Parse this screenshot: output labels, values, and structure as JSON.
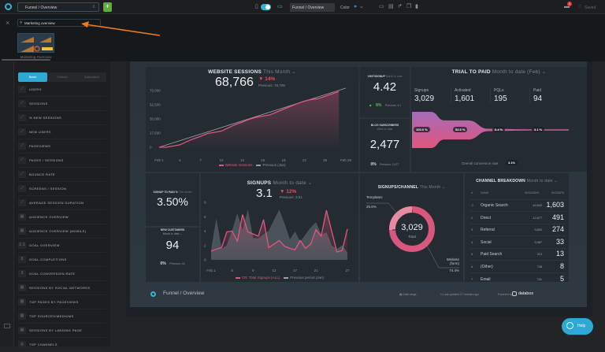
{
  "topbar": {
    "dashboard_select": "Funnel / Overview",
    "add_label": "+",
    "title_input": "Funnel / Overview",
    "color_label": "Color",
    "saved_label": "Saved",
    "notification_count": "1"
  },
  "overlay": {
    "search_value": "Marketing overview",
    "template_label": "Marketing Overview",
    "arrow_color": "#f07a1a"
  },
  "sidebar": {
    "tabs": [
      {
        "label": "Basic",
        "active": true
      },
      {
        "label": "Custom"
      },
      {
        "label": "Calculated"
      }
    ],
    "items": [
      {
        "label": "USERS",
        "icon": "line-chart-icon"
      },
      {
        "label": "SESSIONS",
        "icon": "line-chart-icon"
      },
      {
        "label": "% NEW SESSIONS",
        "icon": "line-chart-icon"
      },
      {
        "label": "NEW USERS",
        "icon": "line-chart-icon"
      },
      {
        "label": "PAGEVIEWS",
        "icon": "line-chart-icon"
      },
      {
        "label": "PAGES / SESSIONS",
        "icon": "line-chart-icon"
      },
      {
        "label": "BOUNCE RATE",
        "icon": "line-chart-icon"
      },
      {
        "label": "SCREENS / SESSION",
        "icon": "line-chart-icon"
      },
      {
        "label": "AVERAGE SESSION DURATION",
        "icon": "line-chart-icon"
      },
      {
        "label": "AUDIENCE OVERVIEW",
        "icon": "table-icon"
      },
      {
        "label": "AUDIENCE OVERVIEW (MOBILE)",
        "icon": "table-icon"
      },
      {
        "label": "GOAL OVERVIEW",
        "icon": "numbers-icon"
      },
      {
        "label": "GOAL COMPLETIONS",
        "icon": "number-icon"
      },
      {
        "label": "GOAL CONVERSION RATE",
        "icon": "number-icon"
      },
      {
        "label": "SESSIONS BY SOCIAL NETWORKS",
        "icon": "table-icon"
      },
      {
        "label": "TOP PAGES BY PAGEVIEWS",
        "icon": "table-icon"
      },
      {
        "label": "TOP SOURCES/MEDIUMS",
        "icon": "table-icon"
      },
      {
        "label": "SESSIONS BY LANDING PAGE",
        "icon": "table-icon"
      },
      {
        "label": "TOP CHANNELS",
        "icon": "donut-icon"
      }
    ]
  },
  "website_sessions": {
    "title": "WEBSITE SESSIONS",
    "period": "This Month",
    "value": "68,766",
    "change": "14%",
    "previous": "Previous: 79,709",
    "legend": [
      "Website sessions",
      "Previous (Jan)"
    ]
  },
  "visit_signup": {
    "title": "VISIT/SIGNUP",
    "period": "Month to date",
    "value": "4.42",
    "change": "8%",
    "previous": "Previous: 4.1"
  },
  "blog_subscribers": {
    "title": "BLOG SUBSCRIBERS",
    "period": "Week to date",
    "value": "2,477",
    "change": "0%",
    "previous": "Previous: 2,477"
  },
  "trial_to_paid": {
    "title": "TRIAL TO PAID",
    "period": "Month to date (Feb)",
    "stages": [
      {
        "label": "Signups",
        "value": "3,029",
        "pct": "100.0 %",
        "ratio": 100
      },
      {
        "label": "Activated",
        "value": "1,601",
        "pct": "52.9 %",
        "ratio": 52.9
      },
      {
        "label": "PQLs",
        "value": "195",
        "pct": "6.4 %",
        "ratio": 6.4
      },
      {
        "label": "Paid",
        "value": "94",
        "pct": "3.1 %",
        "ratio": 3.1
      }
    ],
    "overall_label": "Overall conversion rate",
    "overall_value": "3.1%"
  },
  "signup_to_paid": {
    "title": "SIGNUP TO PAID %",
    "period": "This Month",
    "value": "3.50%"
  },
  "new_customers": {
    "title": "NEW CUSTOMERS",
    "period": "Month to date",
    "value": "94",
    "change": "0%",
    "previous": "Previous: 94"
  },
  "signups": {
    "title": "SIGNUPS",
    "period": "Month to date",
    "value": "3.1",
    "change": "12%",
    "previous": "Previous: 3.51",
    "legend": [
      "CR: Total Signups (ALL)",
      "Previous period (Jan)"
    ]
  },
  "signups_channel": {
    "title": "SIGNUPS/CHANNEL",
    "period": "This Month",
    "total": "3,029",
    "total_label": "Total",
    "slices": [
      {
        "label": "Templates",
        "pct": "25.6%",
        "value": 25.6,
        "color": "#e98aa5"
      },
      {
        "label": "Website (form)",
        "pct": "74.4%",
        "value": 74.4,
        "color": "#d9577c"
      }
    ]
  },
  "channel_breakdown": {
    "title": "CHANNEL BREAKDOWN",
    "period": "Month to date",
    "headers": [
      "#",
      "NAME",
      "SESSIONS",
      "SIGNUPS"
    ],
    "rows": [
      {
        "rank": "",
        "name": "Organic Search",
        "sessions": "46,642",
        "signups": "1,603"
      },
      {
        "rank": "2",
        "name": "Direct",
        "sessions": "12,877",
        "signups": "491"
      },
      {
        "rank": "3",
        "name": "Referral",
        "sessions": "3,802",
        "signups": "274"
      },
      {
        "rank": "4",
        "name": "Social",
        "sessions": "3,367",
        "signups": "33"
      },
      {
        "rank": "5",
        "name": "Paid Search",
        "sessions": "313",
        "signups": "13"
      },
      {
        "rank": "6",
        "name": "(Other)",
        "sessions": "748",
        "signups": "8"
      },
      {
        "rank": "7",
        "name": "Email",
        "sessions": "741",
        "signups": "5"
      }
    ]
  },
  "footer": {
    "title": "Funnel / Overview",
    "date_range": "Date range",
    "last_updated": "Last updated 27 minutes ago",
    "powered_by": "Powered by",
    "brand": "databox"
  },
  "help_label": "Help",
  "chart_data": [
    {
      "type": "area",
      "title": "WEBSITE SESSIONS",
      "x_ticks": [
        "Feb 1",
        "4",
        "7",
        "10",
        "13",
        "16",
        "19",
        "22",
        "25",
        "Feb 28"
      ],
      "y_ticks": [
        "0",
        "17,500",
        "35,000",
        "52,500",
        "70,000"
      ],
      "ylim": [
        0,
        70000
      ],
      "xlim": [
        1,
        28
      ],
      "series": [
        {
          "name": "Website sessions",
          "color": "#e0577e",
          "x": [
            1,
            2,
            3,
            4,
            5,
            6,
            7,
            8,
            9,
            10,
            11,
            12,
            13,
            14,
            15,
            16,
            17,
            18,
            19,
            20,
            21,
            22,
            23,
            24,
            25,
            26,
            27
          ],
          "values": [
            0,
            0,
            1500,
            3000,
            7000,
            10500,
            13500,
            17000,
            18500,
            20000,
            24000,
            28000,
            31000,
            34500,
            37000,
            38500,
            40000,
            43500,
            47000,
            50500,
            54000,
            57000,
            59000,
            60000,
            63000,
            66000,
            68766
          ]
        },
        {
          "name": "Previous (Jan)",
          "color": "#9aa2a8",
          "x": [
            1,
            28
          ],
          "values": [
            0,
            73000
          ]
        }
      ]
    },
    {
      "type": "line",
      "title": "SIGNUPS",
      "x_ticks": [
        "Feb 1",
        "5",
        "9",
        "13",
        "17",
        "21",
        "27"
      ],
      "y_ticks": [
        "0",
        "2",
        "4",
        "6",
        "8"
      ],
      "ylim": [
        0,
        8
      ],
      "xlim": [
        1,
        27
      ],
      "series": [
        {
          "name": "CR: Total Signups (ALL)",
          "color": "#e0577e",
          "x": [
            1,
            2,
            3,
            4,
            5,
            6,
            7,
            8,
            9,
            10,
            11,
            12,
            13,
            14,
            15,
            16,
            17,
            18,
            19,
            20,
            21,
            22,
            23,
            24,
            25,
            26,
            27
          ],
          "values": [
            1.2,
            1.5,
            1.7,
            3.9,
            4.0,
            2.6,
            6.3,
            3.9,
            3.6,
            3.3,
            5.6,
            1.7,
            2.2,
            2.7,
            1.9,
            1.6,
            1.4,
            2.7,
            1.6,
            2.2,
            4.2,
            3.3,
            6.9,
            4.0,
            1.1,
            1.3,
            4.3
          ]
        },
        {
          "name": "Previous period (Jan)",
          "color": "#5b646b",
          "x": [
            1,
            2,
            3,
            4,
            5,
            6,
            7,
            8,
            9,
            10,
            11,
            12,
            13,
            14,
            15,
            16,
            17,
            18,
            19,
            20,
            21,
            22,
            23,
            24,
            25,
            26,
            27
          ],
          "values": [
            1.3,
            5.6,
            1.5,
            2.0,
            4.0,
            6.4,
            4.0,
            6.9,
            3.0,
            3.0,
            3.5,
            4.0,
            5.5,
            6.9,
            5.0,
            2.8,
            3.9,
            2.5,
            3.5,
            4.5,
            5.2,
            3.5,
            3.8,
            2.0,
            1.5,
            2.0,
            1.0
          ]
        }
      ]
    },
    {
      "type": "pie",
      "title": "SIGNUPS/CHANNEL",
      "categories": [
        "Templates",
        "Website (form)"
      ],
      "values": [
        25.6,
        74.4
      ]
    }
  ]
}
